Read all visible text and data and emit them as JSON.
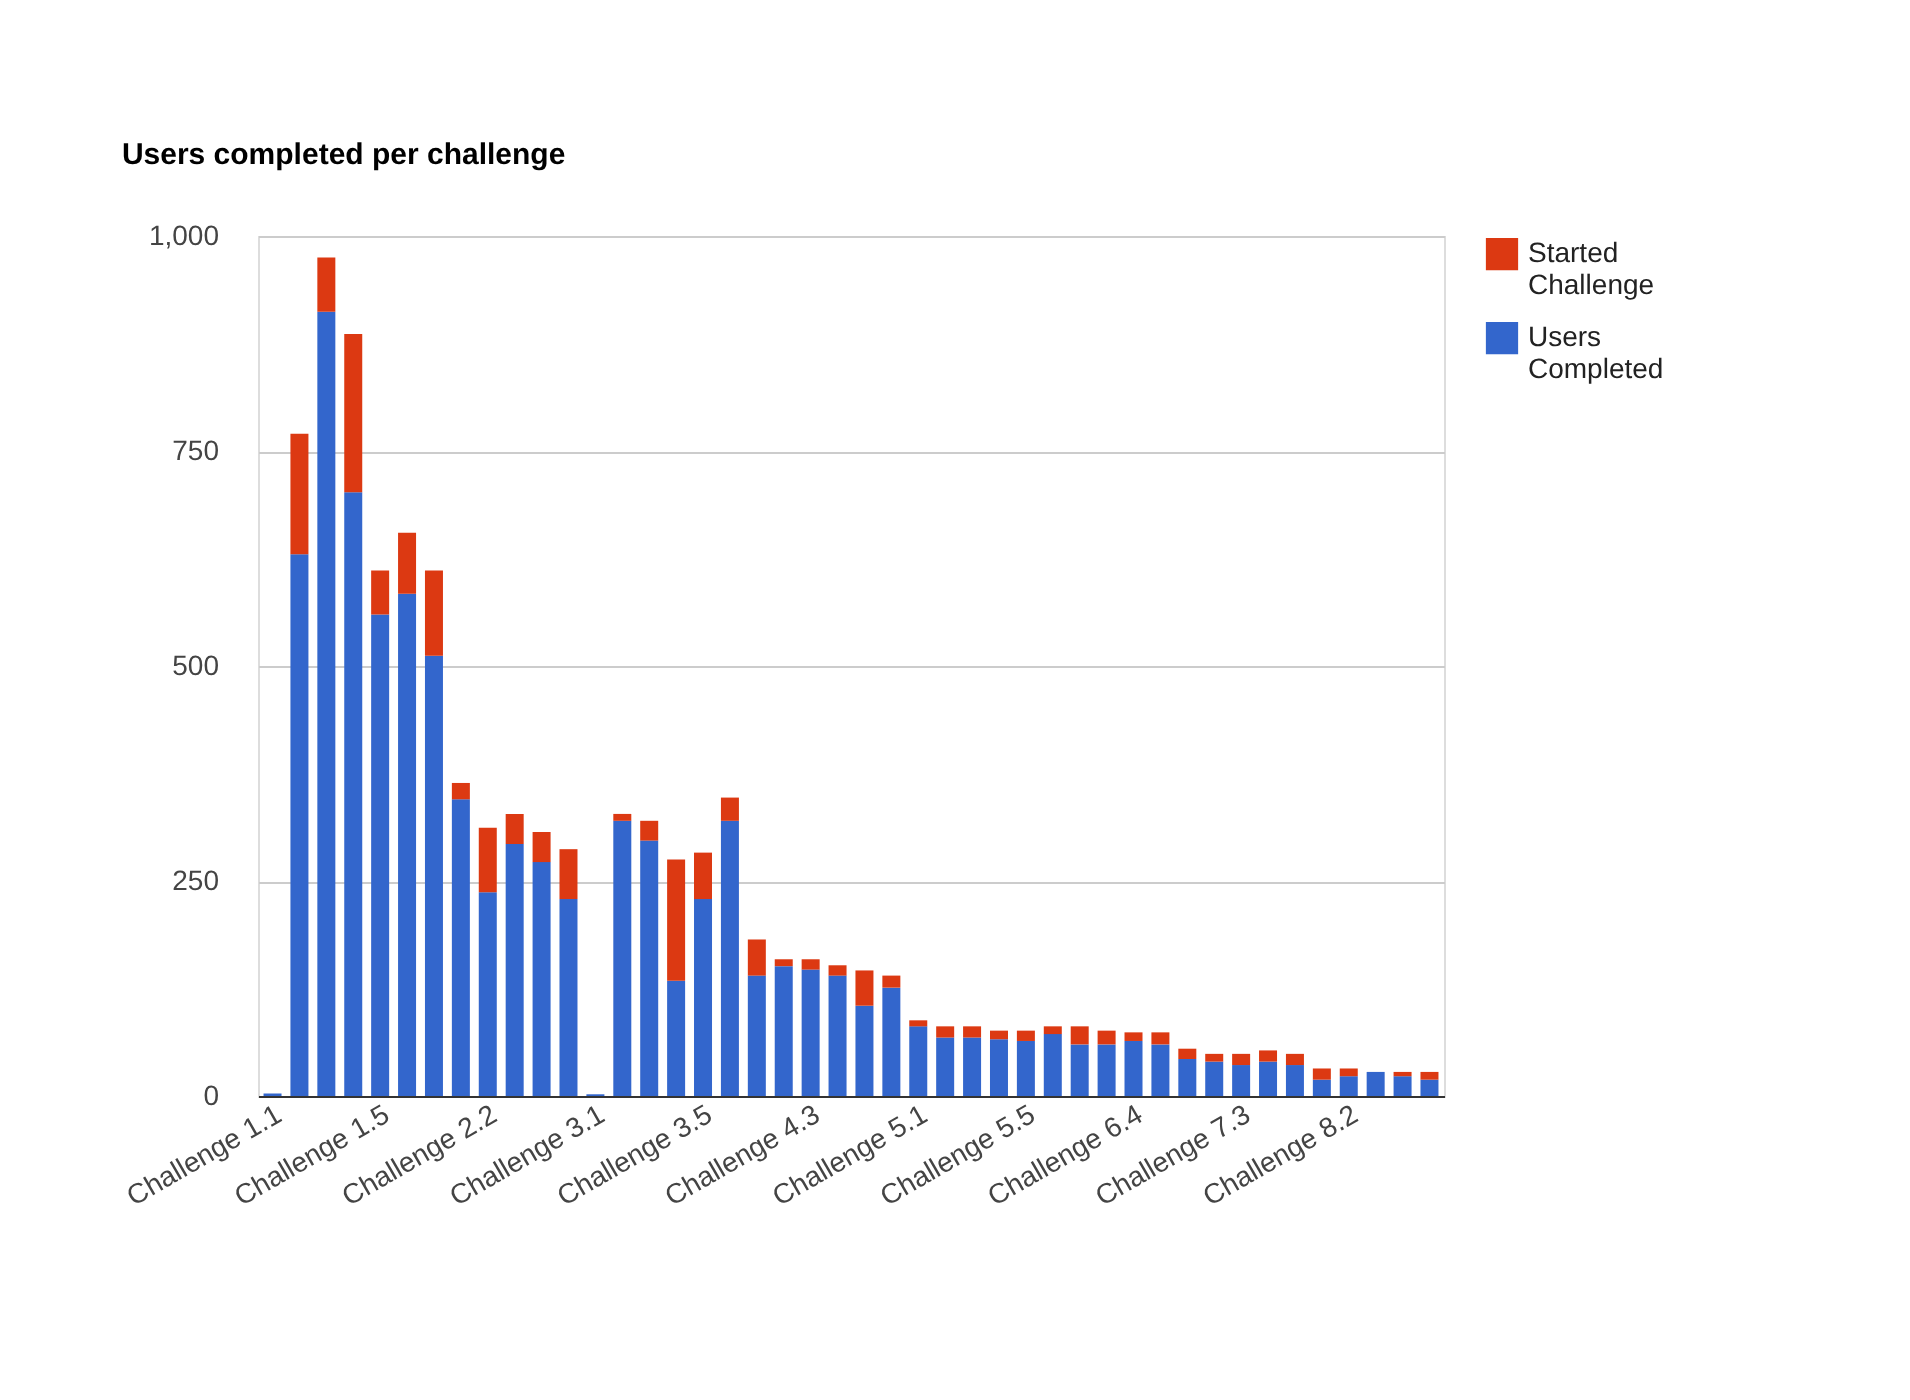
{
  "chart_data": {
    "type": "bar",
    "title": "Users completed per challenge",
    "stacked": true,
    "categories": [
      "Challenge 1.1",
      null,
      null,
      null,
      "Challenge 1.5",
      null,
      null,
      null,
      "Challenge 2.2",
      null,
      null,
      null,
      "Challenge 3.1",
      null,
      null,
      null,
      "Challenge 3.5",
      null,
      null,
      null,
      "Challenge 4.3",
      null,
      null,
      null,
      "Challenge 5.1",
      null,
      null,
      null,
      "Challenge 5.5",
      null,
      null,
      null,
      "Challenge 6.4",
      null,
      null,
      null,
      "Challenge 7.3",
      null,
      null,
      null,
      "Challenge 8.2",
      null,
      null,
      null
    ],
    "series": [
      {
        "name": "Users Completed",
        "color": "#3366cc",
        "values": [
          3,
          630,
          912,
          702,
          560,
          584,
          512,
          345,
          237,
          293,
          272,
          229,
          2,
          320,
          297,
          134,
          229,
          320,
          140,
          151,
          147,
          140,
          105,
          126,
          81,
          68,
          68,
          66,
          64,
          72,
          60,
          60,
          64,
          60,
          43,
          40,
          36,
          40,
          36,
          19,
          23,
          28,
          23,
          19
        ]
      },
      {
        "name": "Started Challenge",
        "color": "#dc3912",
        "values": [
          0,
          140,
          63,
          184,
          51,
          71,
          99,
          19,
          75,
          35,
          35,
          58,
          0,
          8,
          23,
          141,
          54,
          27,
          42,
          8,
          12,
          12,
          41,
          14,
          7,
          13,
          13,
          10,
          12,
          9,
          21,
          16,
          10,
          14,
          12,
          9,
          13,
          13,
          13,
          13,
          9,
          0,
          5,
          9
        ]
      }
    ],
    "ylim": [
      0,
      1000
    ],
    "yticks": [
      0,
      250,
      500,
      750,
      {
        "value": 1000,
        "label": "1,000"
      }
    ],
    "grid": "y",
    "legend": "right"
  }
}
